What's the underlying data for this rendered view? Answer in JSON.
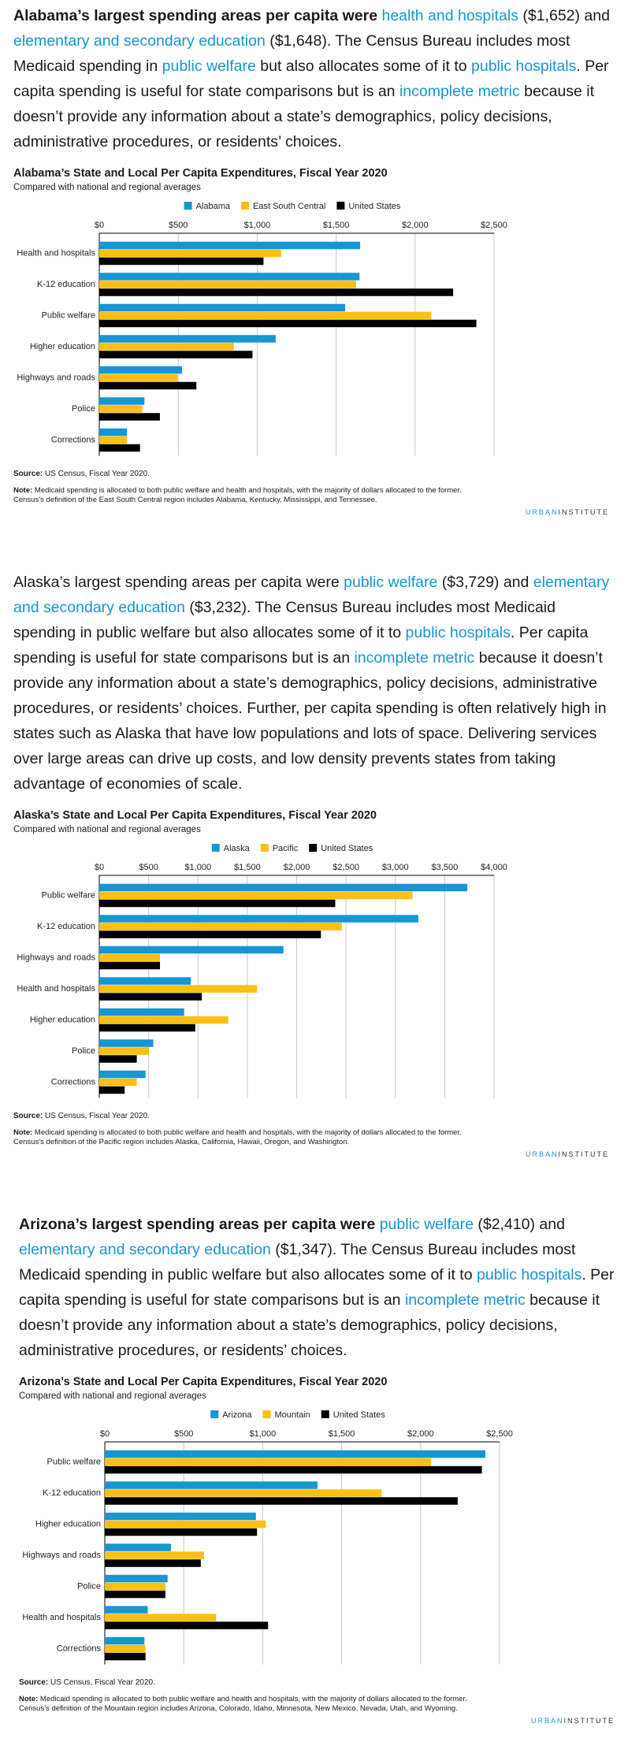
{
  "paragraphs": [
    [
      {
        "text": "Alabama’s largest spending areas per capita were ",
        "style": "bold"
      },
      {
        "text": "health and hospitals",
        "style": "link"
      },
      {
        "text": " ($1,652) and ",
        "style": "plain"
      },
      {
        "text": "elementary and secondary education",
        "style": "link"
      },
      {
        "text": " ($1,648). The Census Bureau includes most Medicaid spending in ",
        "style": "plain"
      },
      {
        "text": "public welfare",
        "style": "link"
      },
      {
        "text": " but also allocates some of it to ",
        "style": "plain"
      },
      {
        "text": "public hospitals",
        "style": "link"
      },
      {
        "text": ". Per capita spending is useful for state comparisons but is an ",
        "style": "plain"
      },
      {
        "text": "incomplete metric",
        "style": "link"
      },
      {
        "text": " because it doesn’t provide any information about a state’s demographics, policy decisions, administrative procedures, or residents’ choices.",
        "style": "plain"
      }
    ],
    [
      {
        "text": "Alaska’s largest spending areas per capita were ",
        "style": "plain"
      },
      {
        "text": "public welfare",
        "style": "link"
      },
      {
        "text": " ($3,729) and ",
        "style": "plain"
      },
      {
        "text": "elementary and secondary education",
        "style": "link"
      },
      {
        "text": " ($3,232). The Census Bureau includes most Medicaid spending in public welfare but also allocates some of it to ",
        "style": "plain"
      },
      {
        "text": "public hospitals",
        "style": "link"
      },
      {
        "text": ". Per capita spending is useful for state comparisons but is an ",
        "style": "plain"
      },
      {
        "text": "incomplete metric",
        "style": "link"
      },
      {
        "text": " because it doesn’t provide any information about a state’s demographics, policy decisions, administrative procedures, or residents’ choices. Further, per capita spending is often relatively high in states such as Alaska that have low populations and lots of space. Delivering services over large areas can drive up costs, and low density prevents states from taking advantage of economies of scale.",
        "style": "plain"
      }
    ],
    [
      {
        "text": "Arizona’s largest spending areas per capita were ",
        "style": "bold"
      },
      {
        "text": "public welfare",
        "style": "link"
      },
      {
        "text": " ($2,410) and ",
        "style": "plain"
      },
      {
        "text": "elementary and secondary education",
        "style": "link"
      },
      {
        "text": " ($1,347). The Census Bureau includes most Medicaid spending in public welfare but also allocates some of it to ",
        "style": "plain"
      },
      {
        "text": "public hospitals",
        "style": "link"
      },
      {
        "text": ". Per capita spending is useful for state comparisons but is an ",
        "style": "plain"
      },
      {
        "text": "incomplete metric",
        "style": "link"
      },
      {
        "text": " because it doesn’t provide any information about a state’s demographics, policy decisions, administrative procedures, or residents’ choices.",
        "style": "plain"
      }
    ]
  ],
  "chart_data": [
    {
      "type": "bar",
      "orientation": "horizontal",
      "title": "Alabama’s State and Local Per Capita Expenditures, Fiscal Year 2020",
      "subtitle": "Compared with national and regional averages",
      "categories": [
        "Health and hospitals",
        "K-12 education",
        "Public welfare",
        "Higher education",
        "Highways and roads",
        "Police",
        "Corrections"
      ],
      "series": [
        {
          "name": "Alabama",
          "color": "#1696d2",
          "values": [
            1652,
            1648,
            1557,
            1117,
            524,
            286,
            175
          ]
        },
        {
          "name": "East South Central",
          "color": "#fdbf11",
          "values": [
            1152,
            1627,
            2102,
            852,
            496,
            272,
            175
          ]
        },
        {
          "name": "United States",
          "color": "#000000",
          "values": [
            1040,
            2241,
            2388,
            970,
            615,
            384,
            258
          ]
        }
      ],
      "xlim": [
        0,
        2500
      ],
      "xticks": [
        {
          "value": 0,
          "label": "$0"
        },
        {
          "value": 500,
          "label": "$500"
        },
        {
          "value": 1000,
          "label": "$1,000"
        },
        {
          "value": 1500,
          "label": "$1,500"
        },
        {
          "value": 2000,
          "label": "$2,000"
        },
        {
          "value": 2500,
          "label": "$2,500"
        }
      ],
      "grid": true,
      "source_label": "Source:",
      "source": "US Census, Fiscal Year 2020.",
      "note_label": "Note:",
      "note": "Medicaid spending is allocated to both public welfare and health and hospitals, with the majority of dollars allocated to the former. Census’s definition of the East South Central region includes Alabama, Kentucky, Mississippi, and Tennessee.",
      "brand_a": "URBAN",
      "brand_b": "INSTITUTE"
    },
    {
      "type": "bar",
      "orientation": "horizontal",
      "title": "Alaska’s State and Local Per Capita Expenditures, Fiscal Year 2020",
      "subtitle": "Compared with national and regional averages",
      "categories": [
        "Public welfare",
        "K-12 education",
        "Highways and roads",
        "Health and hospitals",
        "Higher education",
        "Police",
        "Corrections"
      ],
      "series": [
        {
          "name": "Alaska",
          "color": "#1696d2",
          "values": [
            3729,
            3232,
            1866,
            927,
            860,
            547,
            469
          ]
        },
        {
          "name": "Pacific",
          "color": "#fdbf11",
          "values": [
            3173,
            2458,
            615,
            1598,
            1307,
            503,
            380
          ]
        },
        {
          "name": "United States",
          "color": "#000000",
          "values": [
            2391,
            2246,
            615,
            1039,
            972,
            380,
            257
          ]
        }
      ],
      "xlim": [
        0,
        4000
      ],
      "xticks": [
        {
          "value": 0,
          "label": "$0"
        },
        {
          "value": 500,
          "label": "$500"
        },
        {
          "value": 1000,
          "label": "$1,000"
        },
        {
          "value": 1500,
          "label": "$1,500"
        },
        {
          "value": 2000,
          "label": "$2,000"
        },
        {
          "value": 2500,
          "label": "$2,500"
        },
        {
          "value": 3000,
          "label": "$3,000"
        },
        {
          "value": 3500,
          "label": "$3,500"
        },
        {
          "value": 4000,
          "label": "$4,000"
        }
      ],
      "grid": true,
      "source_label": "Source:",
      "source": "US Census, Fiscal Year 2020.",
      "note_label": "Note:",
      "note": "Medicaid spending is allocated to both public welfare and health and hospitals, with the majority of dollars allocated to the former. Census’s definition of the Pacific region includes Alaska, California, Hawaii, Oregon, and Washington.",
      "brand_a": "URBAN",
      "brand_b": "INSTITUTE"
    },
    {
      "type": "bar",
      "orientation": "horizontal",
      "title": "Arizona’s State and Local Per Capita Expenditures, Fiscal Year 2020",
      "subtitle": "Compared with national and regional averages",
      "categories": [
        "Public welfare",
        "K-12 education",
        "Higher education",
        "Highways and roads",
        "Police",
        "Health and hospitals",
        "Corrections"
      ],
      "series": [
        {
          "name": "Arizona",
          "color": "#1696d2",
          "values": [
            2410,
            1347,
            957,
            419,
            398,
            272,
            251
          ]
        },
        {
          "name": "Mountain",
          "color": "#fdbf11",
          "values": [
            2067,
            1753,
            1020,
            628,
            384,
            705,
            258
          ]
        },
        {
          "name": "United States",
          "color": "#000000",
          "values": [
            2388,
            2235,
            964,
            608,
            384,
            1034,
            258
          ]
        }
      ],
      "xlim": [
        0,
        2500
      ],
      "xticks": [
        {
          "value": 0,
          "label": "$0"
        },
        {
          "value": 500,
          "label": "$500"
        },
        {
          "value": 1000,
          "label": "$1,000"
        },
        {
          "value": 1500,
          "label": "$1,500"
        },
        {
          "value": 2000,
          "label": "$2,000"
        },
        {
          "value": 2500,
          "label": "$2,500"
        }
      ],
      "grid": true,
      "source_label": "Source:",
      "source": "US Census, Fiscal Year 2020.",
      "note_label": "Note:",
      "note": "Medicaid spending is allocated to both public welfare and health and hospitals, with the majority of dollars allocated to the former. Census’s definition of the Mountain region includes Arizona, Colorado, Idaho, Minnesota, New Mexico, Nevada, Utah, and Wyoming.",
      "brand_a": "URBAN",
      "brand_b": "INSTITUTE"
    }
  ]
}
